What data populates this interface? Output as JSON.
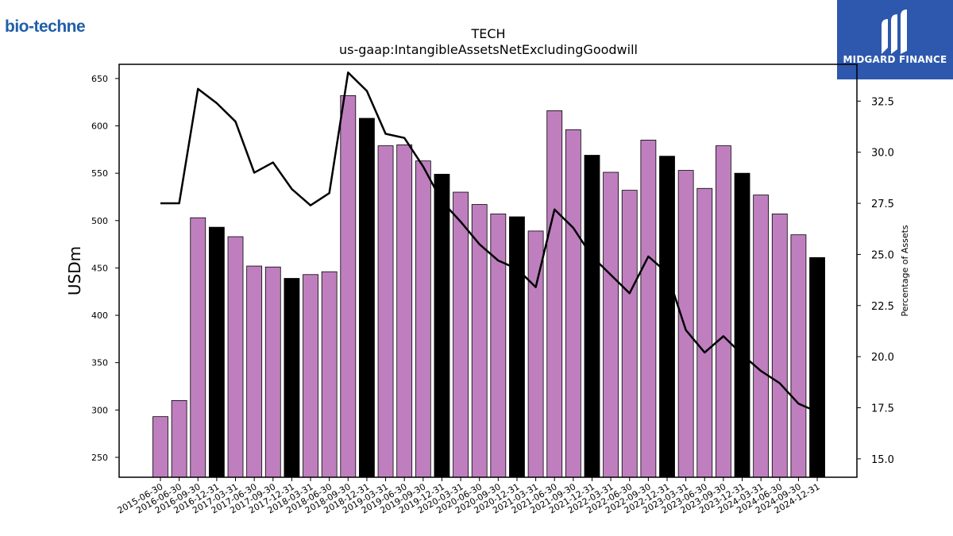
{
  "brand": {
    "left_logo_text": "bio-techne",
    "right_logo_text": "MIDGARD FINANCE",
    "right_logo_bg": "#2d58ad"
  },
  "chart_data": {
    "type": "bar",
    "title": "TECH",
    "subtitle": "us-gaap:IntangibleAssetsNetExcludingGoodwill",
    "ylabel": "USDm",
    "y2label": "Percentage of Assets",
    "ylim": [
      229,
      665
    ],
    "y2lim": [
      14.1,
      34.3
    ],
    "yticks": [
      250,
      300,
      350,
      400,
      450,
      500,
      550,
      600,
      650
    ],
    "y2ticks": [
      15.0,
      17.5,
      20.0,
      22.5,
      25.0,
      27.5,
      30.0,
      32.5
    ],
    "categories": [
      "2015-06-30",
      "2016-06-30",
      "2016-09-30",
      "2016-12-31",
      "2017-03-31",
      "2017-06-30",
      "2017-09-30",
      "2017-12-31",
      "2018-03-31",
      "2018-06-30",
      "2018-09-30",
      "2018-12-31",
      "2019-03-31",
      "2019-06-30",
      "2019-09-30",
      "2019-12-31",
      "2020-03-31",
      "2020-06-30",
      "2020-09-30",
      "2020-12-31",
      "2021-03-31",
      "2021-06-30",
      "2021-09-30",
      "2021-12-31",
      "2022-03-31",
      "2022-06-30",
      "2022-09-30",
      "2022-12-31",
      "2023-03-31",
      "2023-06-30",
      "2023-09-30",
      "2023-12-31",
      "2024-03-31",
      "2024-06-30",
      "2024-09-30",
      "2024-12-31"
    ],
    "series": [
      {
        "type": "bar",
        "values": [
          293,
          310,
          503,
          493,
          483,
          452,
          451,
          439,
          443,
          446,
          632,
          608,
          579,
          580,
          563,
          549,
          530,
          517,
          507,
          504,
          489,
          616,
          596,
          569,
          551,
          532,
          585,
          568,
          553,
          534,
          579,
          550,
          527,
          507,
          485,
          461
        ],
        "colors": [
          "#bf7fbf",
          "#bf7fbf",
          "#bf7fbf",
          "#000000",
          "#bf7fbf",
          "#bf7fbf",
          "#bf7fbf",
          "#000000",
          "#bf7fbf",
          "#bf7fbf",
          "#bf7fbf",
          "#000000",
          "#bf7fbf",
          "#bf7fbf",
          "#bf7fbf",
          "#000000",
          "#bf7fbf",
          "#bf7fbf",
          "#bf7fbf",
          "#000000",
          "#bf7fbf",
          "#bf7fbf",
          "#bf7fbf",
          "#000000",
          "#bf7fbf",
          "#bf7fbf",
          "#bf7fbf",
          "#000000",
          "#bf7fbf",
          "#bf7fbf",
          "#bf7fbf",
          "#000000",
          "#bf7fbf",
          "#bf7fbf",
          "#bf7fbf",
          "#000000"
        ]
      },
      {
        "type": "line",
        "axis": "right",
        "color": "#000000",
        "values": [
          27.5,
          27.5,
          33.1,
          32.4,
          31.5,
          29.0,
          29.5,
          28.2,
          27.4,
          28.0,
          33.9,
          33.0,
          30.9,
          30.7,
          29.3,
          27.6,
          26.6,
          25.5,
          24.7,
          24.3,
          23.4,
          27.2,
          26.3,
          24.9,
          24.0,
          23.1,
          24.9,
          24.1,
          21.3,
          20.2,
          21.0,
          20.1,
          19.3,
          18.7,
          17.7,
          17.3
        ]
      }
    ],
    "grid": false,
    "legend": "none"
  }
}
